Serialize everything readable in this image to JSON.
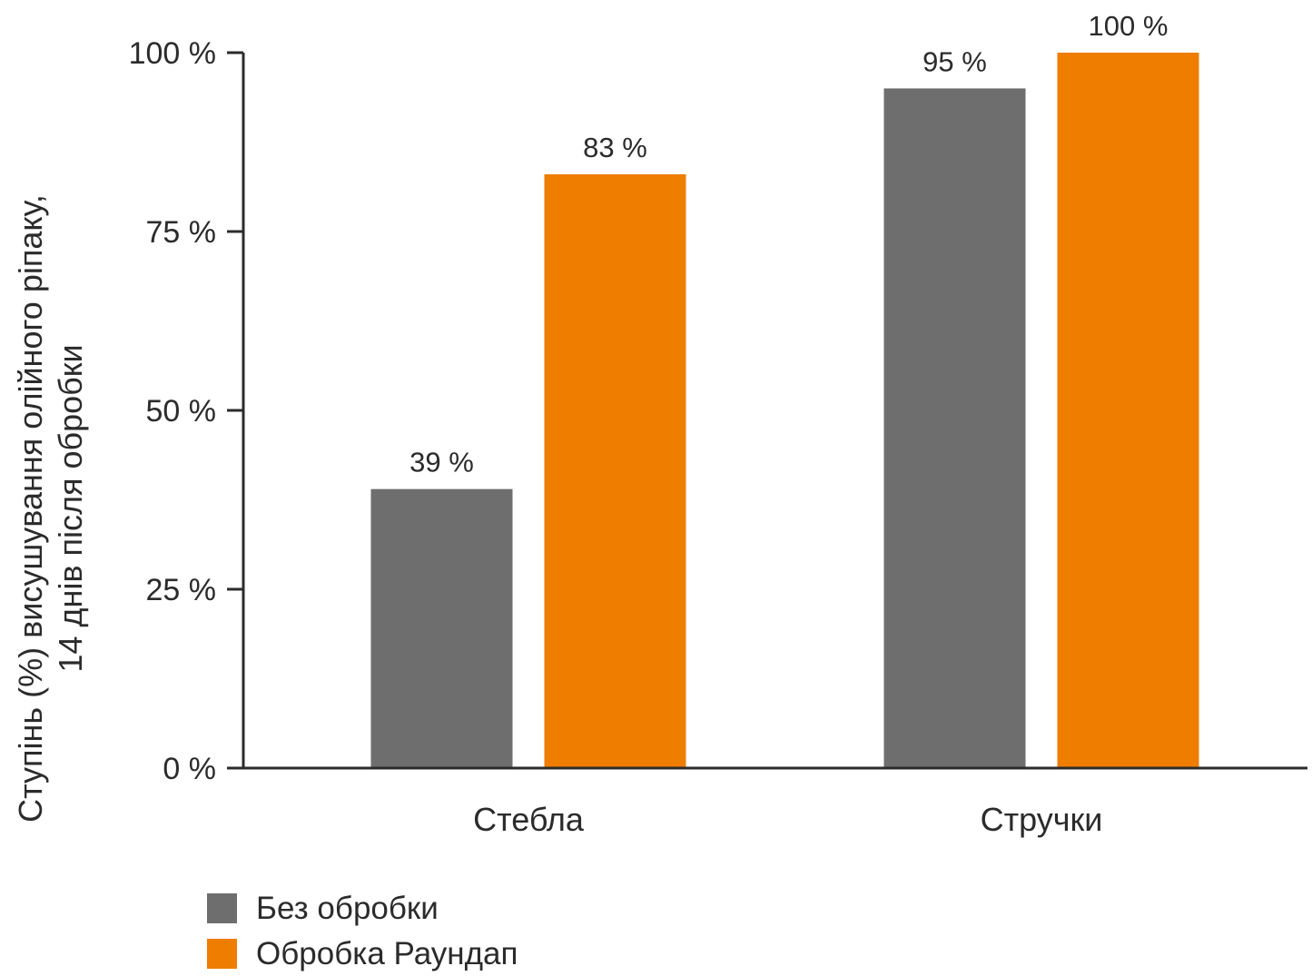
{
  "chart_data": {
    "type": "bar",
    "categories": [
      "Стебла",
      "Стручки"
    ],
    "series": [
      {
        "name": "Без обробки",
        "values": [
          39,
          95
        ],
        "labels": [
          "39 %",
          "95 %"
        ]
      },
      {
        "name": "Обробка Раундап",
        "values": [
          83,
          100
        ],
        "labels": [
          "83 %",
          "100 %"
        ]
      }
    ],
    "ylabel_line1": "Ступінь (%) висушування олійного ріпаку,",
    "ylabel_line2": "14 днів після обробки",
    "ylim": [
      0,
      100
    ],
    "yticks": [
      0,
      25,
      50,
      75,
      100
    ],
    "ytick_labels": [
      "0 %",
      "25 %",
      "50 %",
      "75 %",
      "100 %"
    ],
    "grid": false,
    "legend_position": "bottom-left",
    "colors": {
      "Без обробки": "#6e6e6e",
      "Обробка Раундап": "#ef7d00"
    }
  }
}
